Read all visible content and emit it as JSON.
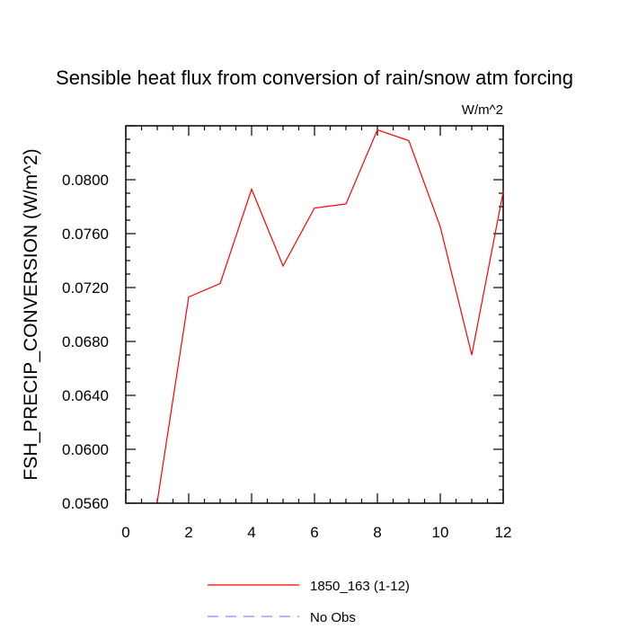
{
  "chart_data": {
    "type": "line",
    "title": "Sensible heat flux from conversion of rain/snow atm forcing",
    "units_label": "W/m^2",
    "ylabel": "FSH_PRECIP_CONVERSION  (W/m^2)",
    "xlabel": "",
    "xlim": [
      0,
      12
    ],
    "ylim": [
      0.056,
      0.084
    ],
    "x_ticks": [
      "0",
      "2",
      "4",
      "6",
      "8",
      "10",
      "12"
    ],
    "y_ticks": [
      "0.0560",
      "0.0600",
      "0.0640",
      "0.0680",
      "0.0720",
      "0.0760",
      "0.0800"
    ],
    "grid": false,
    "legend_position": "bottom",
    "series": [
      {
        "name": "1850_163 (1-12)",
        "color": "#ff0000",
        "dash": "solid",
        "x": [
          1,
          2,
          3,
          4,
          5,
          6,
          7,
          8,
          9,
          10,
          11,
          12
        ],
        "y": [
          0.0561,
          0.0713,
          0.0723,
          0.0793,
          0.0736,
          0.0779,
          0.0782,
          0.0837,
          0.0829,
          0.0765,
          0.067,
          0.0791
        ]
      },
      {
        "name": "No Obs",
        "color": "#8888ff",
        "dash": "dashed",
        "x": [],
        "y": []
      }
    ]
  }
}
